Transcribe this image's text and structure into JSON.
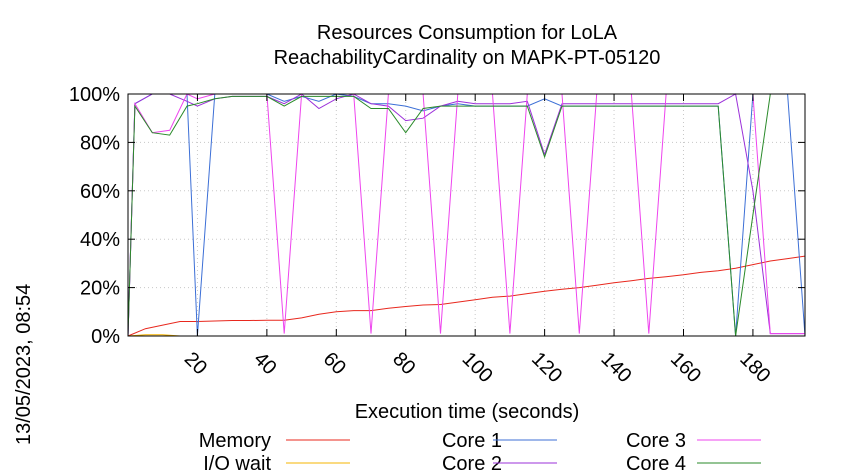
{
  "colors": {
    "memory": "#e8281e",
    "io_wait": "#f5b400",
    "core1": "#3c6fd6",
    "core2": "#9b30d9",
    "core3": "#ee44ee",
    "core4": "#2a8a2a"
  },
  "timestamp": "13/05/2023, 08:54",
  "chart_data": {
    "type": "line",
    "title": "Resources Consumption for LoLA",
    "subtitle": "ReachabilityCardinality on MAPK-PT-05120",
    "xlabel": "Execution time (seconds)",
    "ylabel": "",
    "xlim": [
      0,
      195
    ],
    "ylim": [
      0,
      100
    ],
    "xticks": [
      20,
      40,
      60,
      80,
      100,
      120,
      140,
      160,
      180
    ],
    "xtick_labels": [
      "20",
      "40",
      "60",
      "80",
      "100",
      "120",
      "140",
      "160",
      "180"
    ],
    "yticks": [
      0,
      20,
      40,
      60,
      80,
      100
    ],
    "ytick_labels": [
      "0%",
      "20%",
      "40%",
      "60%",
      "80%",
      "100%"
    ],
    "grid": true,
    "legend_position": "bottom",
    "series": [
      {
        "name": "Memory",
        "color_key": "memory",
        "x": [
          0,
          5,
          10,
          15,
          20,
          25,
          30,
          35,
          40,
          45,
          50,
          55,
          60,
          65,
          70,
          75,
          80,
          85,
          90,
          95,
          100,
          105,
          110,
          115,
          120,
          125,
          130,
          135,
          140,
          145,
          150,
          155,
          160,
          165,
          170,
          175,
          180,
          185,
          190,
          195
        ],
        "values": [
          0,
          3,
          4.5,
          6,
          6,
          6.2,
          6.4,
          6.4,
          6.5,
          6.5,
          7.5,
          9,
          10,
          10.5,
          10.5,
          11.5,
          12.2,
          12.8,
          13,
          14,
          15,
          16,
          16.5,
          17.5,
          18.5,
          19.3,
          20,
          21,
          22,
          22.8,
          23.8,
          24.5,
          25.3,
          26.3,
          27,
          28,
          29.5,
          31,
          32,
          33
        ]
      },
      {
        "name": "I/O wait",
        "color_key": "io_wait",
        "x": [
          0,
          5,
          10,
          15,
          20,
          195
        ],
        "values": [
          0,
          0.5,
          0.5,
          0,
          0,
          0
        ]
      },
      {
        "name": "Core 1",
        "color_key": "core1",
        "x": [
          0,
          2,
          7,
          12,
          17,
          20,
          25,
          30,
          35,
          40,
          45,
          50,
          55,
          60,
          65,
          70,
          75,
          80,
          85,
          90,
          95,
          100,
          105,
          110,
          115,
          120,
          125,
          130,
          135,
          140,
          145,
          150,
          155,
          160,
          165,
          170,
          175,
          180,
          185,
          190,
          195
        ],
        "values": [
          0,
          96,
          100,
          100,
          100,
          0,
          100,
          100,
          100,
          100,
          97,
          99,
          97,
          100,
          99,
          96,
          96,
          95,
          93,
          95,
          96,
          95,
          95,
          95,
          95,
          98,
          95,
          95,
          95,
          95,
          95,
          95,
          95,
          95,
          95,
          95,
          0,
          100,
          100,
          100,
          0
        ]
      },
      {
        "name": "Core 2",
        "color_key": "core2",
        "x": [
          0,
          2,
          7,
          12,
          17,
          20,
          25,
          30,
          35,
          40,
          45,
          50,
          55,
          60,
          65,
          70,
          75,
          80,
          85,
          90,
          95,
          100,
          105,
          110,
          115,
          120,
          125,
          130,
          135,
          140,
          145,
          150,
          155,
          160,
          165,
          170,
          175,
          180,
          185,
          190,
          195
        ],
        "values": [
          0,
          96,
          100,
          100,
          97,
          95,
          98,
          99,
          99,
          99,
          96,
          100,
          94,
          98,
          100,
          96,
          95,
          89,
          90,
          95,
          97,
          96,
          96,
          96,
          97,
          75,
          96,
          96,
          96,
          96,
          96,
          96,
          96,
          96,
          96,
          96,
          100,
          60,
          1,
          1,
          1
        ]
      },
      {
        "name": "Core 3",
        "color_key": "core3",
        "x": [
          0,
          2,
          7,
          12,
          17,
          20,
          25,
          30,
          35,
          40,
          45,
          50,
          55,
          60,
          65,
          70,
          75,
          80,
          85,
          90,
          95,
          100,
          105,
          110,
          115,
          120,
          125,
          130,
          135,
          140,
          145,
          150,
          155,
          160,
          165,
          170,
          175,
          180,
          185,
          190,
          195
        ],
        "values": [
          0,
          96,
          84,
          85,
          100,
          98,
          100,
          100,
          100,
          100,
          1,
          100,
          100,
          100,
          100,
          1,
          100,
          100,
          100,
          1,
          100,
          100,
          100,
          1,
          100,
          100,
          100,
          1,
          100,
          100,
          100,
          1,
          100,
          100,
          100,
          100,
          100,
          100,
          1,
          1,
          1
        ]
      },
      {
        "name": "Core 4",
        "color_key": "core4",
        "x": [
          0,
          2,
          7,
          12,
          17,
          20,
          25,
          30,
          35,
          40,
          45,
          50,
          55,
          60,
          65,
          70,
          75,
          80,
          85,
          90,
          95,
          100,
          105,
          110,
          115,
          120,
          125,
          130,
          135,
          140,
          145,
          150,
          155,
          160,
          165,
          170,
          175,
          180,
          185,
          190,
          195
        ],
        "values": [
          0,
          95,
          84,
          83,
          95,
          96,
          98,
          99,
          99,
          99,
          95,
          99,
          99,
          99,
          99,
          94,
          94,
          84,
          94,
          95,
          95,
          95,
          95,
          95,
          95,
          74,
          95,
          95,
          95,
          95,
          95,
          95,
          95,
          95,
          95,
          95,
          0,
          50,
          100,
          100,
          100
        ]
      }
    ]
  }
}
